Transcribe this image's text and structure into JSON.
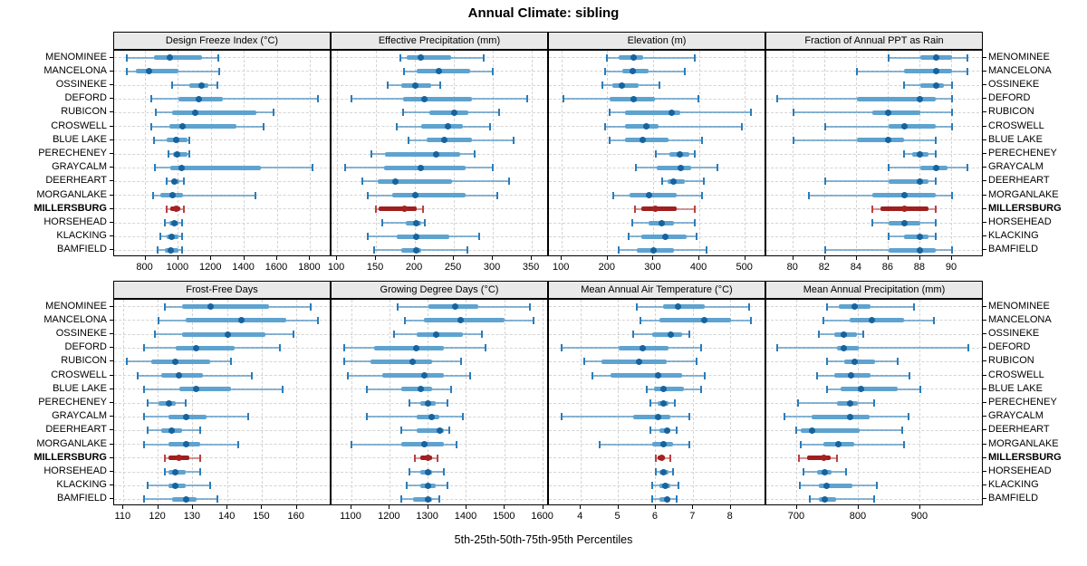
{
  "title": "Annual Climate: sibling",
  "caption": "5th-25th-50th-75th-95th Percentiles",
  "highlight_site": "MILLERSBURG",
  "sites": [
    "MENOMINEE",
    "MANCELONA",
    "OSSINEKE",
    "DEFORD",
    "RUBICON",
    "CROSWELL",
    "BLUE LAKE",
    "PERECHENEY",
    "GRAYCALM",
    "DEERHEART",
    "MORGANLAKE",
    "MILLERSBURG",
    "HORSEHEAD",
    "KLACKING",
    "BAMFIELD"
  ],
  "colors": {
    "blue_line": "#2b7cb8",
    "blue_bar": "#5ea3d0",
    "blue_dot": "#16639e",
    "red_line": "#bb4040",
    "red_bar": "#9e1f1f",
    "red_dot": "#a52222",
    "grid": "#d4d4d4",
    "strip_bg": "#e9e9e9",
    "border": "#000000"
  },
  "chart_data": {
    "type": "dotplot-percentiles",
    "orientation": "horizontal",
    "percentile_labels": [
      "5th",
      "25th",
      "50th",
      "75th",
      "95th"
    ],
    "grid": true,
    "layout": {
      "rows": 2,
      "cols": 4
    },
    "panels": [
      {
        "title": "Design Freeze Index (°C)",
        "xlim": [
          610,
          1930
        ],
        "ticks": [
          800,
          1000,
          1200,
          1400,
          1600,
          1800
        ],
        "values": [
          [
            686,
            850,
            948,
            1144,
            1245
          ],
          [
            686,
            741,
            822,
            1000,
            1250
          ],
          [
            960,
            1065,
            1140,
            1180,
            1235
          ],
          [
            837,
            1000,
            1126,
            1270,
            1850
          ],
          [
            864,
            960,
            1100,
            1475,
            1580
          ],
          [
            833,
            943,
            1023,
            1355,
            1515
          ],
          [
            850,
            928,
            989,
            1053,
            1065
          ],
          [
            939,
            965,
            992,
            1053,
            1066
          ],
          [
            860,
            950,
            1020,
            1500,
            1815
          ],
          [
            930,
            955,
            975,
            1005,
            1035
          ],
          [
            845,
            890,
            965,
            1030,
            1470
          ],
          [
            930,
            950,
            985,
            1010,
            1035
          ],
          [
            920,
            945,
            975,
            1000,
            1025
          ],
          [
            890,
            930,
            960,
            1000,
            1025
          ],
          [
            875,
            920,
            955,
            1000,
            1025
          ]
        ]
      },
      {
        "title": "Effective Precipitation (mm)",
        "xlim": [
          93,
          372
        ],
        "ticks": [
          100,
          150,
          200,
          250,
          300,
          350
        ],
        "values": [
          [
            181,
            190,
            208,
            246,
            288
          ],
          [
            186,
            202,
            231,
            271,
            300
          ],
          [
            165,
            183,
            200,
            221,
            233
          ],
          [
            118,
            185,
            212,
            273,
            344
          ],
          [
            185,
            219,
            250,
            269,
            308
          ],
          [
            177,
            208,
            242,
            262,
            296
          ],
          [
            192,
            215,
            238,
            273,
            327
          ],
          [
            144,
            162,
            227,
            258,
            277
          ],
          [
            110,
            160,
            208,
            265,
            300
          ],
          [
            133,
            152,
            175,
            248,
            321
          ],
          [
            140,
            171,
            200,
            265,
            306
          ],
          [
            150,
            154,
            187,
            202,
            210
          ],
          [
            158,
            188,
            202,
            208,
            213
          ],
          [
            140,
            177,
            202,
            244,
            283
          ],
          [
            148,
            183,
            202,
            208,
            267
          ]
        ]
      },
      {
        "title": "Elevation (m)",
        "xlim": [
          72,
          546
        ],
        "ticks": [
          100,
          200,
          300,
          400,
          500
        ],
        "values": [
          [
            198,
            225,
            257,
            277,
            389
          ],
          [
            195,
            231,
            254,
            290,
            369
          ],
          [
            189,
            211,
            231,
            267,
            313
          ],
          [
            103,
            205,
            257,
            303,
            398
          ],
          [
            205,
            238,
            339,
            359,
            513
          ],
          [
            195,
            238,
            284,
            310,
            493
          ],
          [
            205,
            238,
            277,
            333,
            405
          ],
          [
            306,
            334,
            358,
            379,
            390
          ],
          [
            261,
            308,
            360,
            383,
            440
          ],
          [
            319,
            331,
            344,
            369,
            410
          ],
          [
            213,
            248,
            290,
            350,
            405
          ],
          [
            259,
            273,
            305,
            350,
            390
          ],
          [
            253,
            290,
            317,
            345,
            390
          ],
          [
            246,
            274,
            325,
            373,
            394
          ],
          [
            224,
            264,
            300,
            344,
            416
          ]
        ]
      },
      {
        "title": "Fraction of Annual PPT as Rain",
        "xlim": [
          78.3,
          92
        ],
        "ticks": [
          80,
          82,
          84,
          86,
          88,
          90
        ],
        "values": [
          [
            86,
            88,
            89,
            90,
            91
          ],
          [
            84,
            87,
            89,
            90,
            91
          ],
          [
            87,
            88,
            89,
            89.5,
            90
          ],
          [
            79,
            84,
            88,
            89,
            90
          ],
          [
            80,
            85,
            86,
            88,
            90
          ],
          [
            82,
            86,
            87,
            89,
            90
          ],
          [
            80,
            84,
            86,
            87,
            89
          ],
          [
            87,
            87.5,
            88,
            88.5,
            89
          ],
          [
            86,
            88,
            89,
            89.7,
            91
          ],
          [
            82,
            86,
            88,
            88.5,
            89
          ],
          [
            81,
            85,
            87,
            89,
            90
          ],
          [
            85,
            85.5,
            87,
            88.5,
            89
          ],
          [
            85,
            86,
            87,
            88,
            89
          ],
          [
            86,
            87,
            88,
            88.5,
            89
          ],
          [
            82,
            86,
            88,
            89,
            90
          ]
        ]
      },
      {
        "title": "Frost-Free Days",
        "xlim": [
          107.3,
          170
        ],
        "ticks": [
          110,
          120,
          130,
          140,
          150,
          160
        ],
        "values": [
          [
            122,
            127,
            135,
            152,
            164
          ],
          [
            120,
            128,
            144,
            157,
            166
          ],
          [
            119,
            127,
            140,
            151,
            159
          ],
          [
            116,
            125,
            131,
            142,
            155
          ],
          [
            111,
            118,
            125,
            135,
            141
          ],
          [
            114,
            121,
            126,
            133,
            147
          ],
          [
            116,
            126,
            131,
            141,
            156
          ],
          [
            117,
            120,
            123,
            125,
            128
          ],
          [
            116,
            123,
            128,
            134,
            146
          ],
          [
            117,
            121,
            124,
            127,
            132
          ],
          [
            116,
            123,
            128,
            132,
            143
          ],
          [
            122,
            123,
            126,
            129,
            132
          ],
          [
            122,
            123,
            125,
            128,
            132
          ],
          [
            117,
            123,
            125,
            128,
            135
          ],
          [
            116,
            124,
            128,
            131,
            137
          ]
        ]
      },
      {
        "title": "Growing Degree Days (°C)",
        "xlim": [
          1048,
          1615
        ],
        "ticks": [
          1100,
          1200,
          1300,
          1400,
          1500,
          1600
        ],
        "values": [
          [
            1220,
            1300,
            1370,
            1430,
            1565
          ],
          [
            1240,
            1290,
            1385,
            1500,
            1575
          ],
          [
            1210,
            1270,
            1320,
            1390,
            1440
          ],
          [
            1080,
            1160,
            1270,
            1340,
            1450
          ],
          [
            1080,
            1150,
            1260,
            1310,
            1385
          ],
          [
            1090,
            1180,
            1290,
            1340,
            1410
          ],
          [
            1140,
            1230,
            1280,
            1310,
            1360
          ],
          [
            1250,
            1280,
            1300,
            1320,
            1350
          ],
          [
            1140,
            1270,
            1310,
            1330,
            1390
          ],
          [
            1230,
            1270,
            1330,
            1340,
            1355
          ],
          [
            1100,
            1230,
            1290,
            1340,
            1375
          ],
          [
            1265,
            1280,
            1300,
            1310,
            1325
          ],
          [
            1250,
            1280,
            1300,
            1310,
            1340
          ],
          [
            1245,
            1280,
            1300,
            1320,
            1350
          ],
          [
            1230,
            1260,
            1300,
            1310,
            1330
          ]
        ]
      },
      {
        "title": "Mean Annual Air Temperature (°C)",
        "xlim": [
          3.15,
          8.95
        ],
        "ticks": [
          4,
          5,
          6,
          7,
          8
        ],
        "values": [
          [
            5.5,
            6.2,
            6.6,
            7.3,
            8.5
          ],
          [
            5.6,
            6.1,
            7.3,
            8.0,
            8.55
          ],
          [
            5.4,
            5.9,
            6.4,
            6.7,
            6.9
          ],
          [
            3.5,
            5.0,
            5.65,
            6.35,
            7.2
          ],
          [
            4.1,
            4.55,
            5.55,
            6.3,
            7.1
          ],
          [
            4.3,
            4.8,
            6.05,
            6.7,
            7.3
          ],
          [
            5.75,
            5.95,
            6.2,
            6.75,
            7.2
          ],
          [
            5.85,
            6.05,
            6.2,
            6.35,
            6.5
          ],
          [
            3.5,
            5.4,
            6.05,
            6.4,
            6.9
          ],
          [
            5.85,
            6.1,
            6.3,
            6.4,
            6.55
          ],
          [
            4.5,
            5.9,
            6.2,
            6.45,
            6.9
          ],
          [
            6.0,
            6.05,
            6.15,
            6.25,
            6.4
          ],
          [
            6.0,
            6.1,
            6.2,
            6.35,
            6.45
          ],
          [
            5.9,
            6.1,
            6.25,
            6.4,
            6.6
          ],
          [
            5.9,
            6.1,
            6.3,
            6.4,
            6.55
          ]
        ]
      },
      {
        "title": "Mean Annual Precipitation (mm)",
        "xlim": [
          650,
          1003
        ],
        "ticks": [
          700,
          800,
          900
        ],
        "values": [
          [
            748,
            767,
            794,
            819,
            890
          ],
          [
            742,
            785,
            821,
            873,
            922
          ],
          [
            736,
            760,
            776,
            797,
            808
          ],
          [
            668,
            765,
            776,
            800,
            978
          ],
          [
            748,
            776,
            794,
            826,
            864
          ],
          [
            732,
            760,
            788,
            819,
            883
          ],
          [
            748,
            771,
            803,
            863,
            900
          ],
          [
            702,
            765,
            786,
            799,
            825
          ],
          [
            679,
            723,
            786,
            818,
            881
          ],
          [
            698,
            706,
            725,
            802,
            870
          ],
          [
            706,
            743,
            767,
            792,
            874
          ],
          [
            703,
            716,
            743,
            754,
            765
          ],
          [
            711,
            732,
            745,
            756,
            780
          ],
          [
            705,
            736,
            748,
            789,
            829
          ],
          [
            721,
            736,
            745,
            763,
            825
          ]
        ]
      }
    ]
  }
}
